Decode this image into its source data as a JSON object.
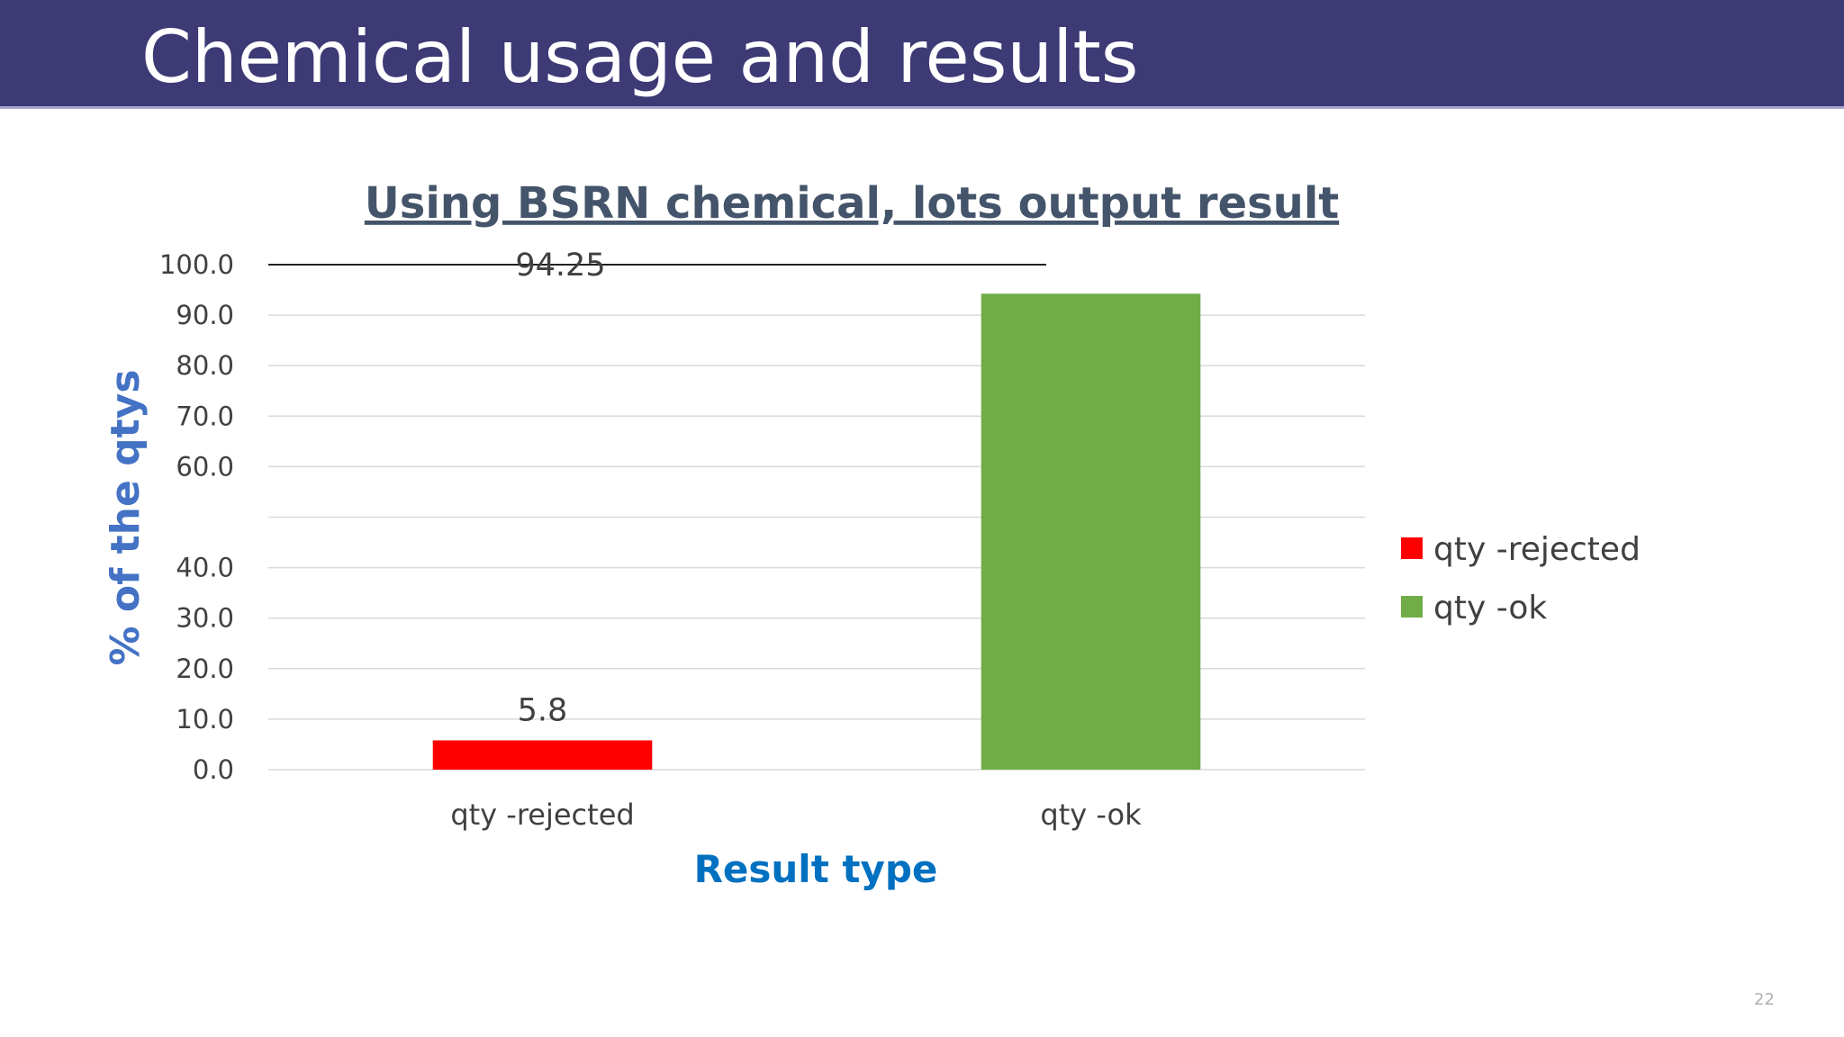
{
  "slide": {
    "title": "Chemical usage and results",
    "number": "22"
  },
  "chart_data": {
    "type": "bar",
    "title": "Using BSRN chemical, lots output result",
    "xlabel": "Result type",
    "ylabel": "% of the qtys",
    "categories": [
      "qty -rejected",
      "qty -ok"
    ],
    "values": [
      5.8,
      94.25
    ],
    "data_labels": [
      "5.8",
      "94.25"
    ],
    "colors": [
      "#ff0000",
      "#70ad47"
    ],
    "ylim": [
      0,
      100
    ],
    "y_ticks": [
      "0.0",
      "10.0",
      "20.0",
      "30.0",
      "40.0",
      "",
      "60.0",
      "70.0",
      "80.0",
      "90.0",
      "100.0"
    ],
    "grid": true,
    "legend": {
      "placement": "right",
      "entries": [
        "qty -rejected",
        "qty -ok"
      ]
    }
  }
}
